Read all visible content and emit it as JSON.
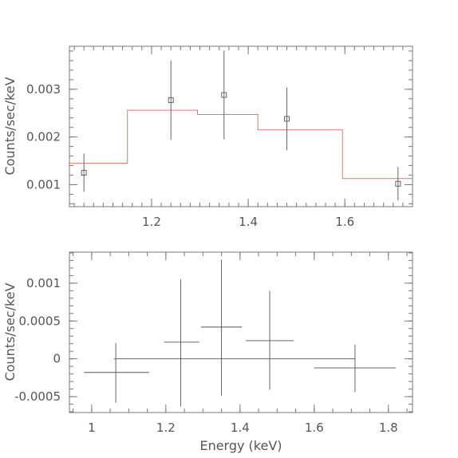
{
  "chart_data": [
    {
      "type": "scatter",
      "panel": "top",
      "xlabel": "",
      "ylabel": "Counts/sec/keV",
      "xlim": [
        1.03,
        1.74
      ],
      "ylim": [
        0.00054,
        0.0039
      ],
      "xticks": [
        1.2,
        1.4,
        1.6
      ],
      "xtick_labels": [
        "1.2",
        "1.4",
        "1.6"
      ],
      "yticks": [
        0.001,
        0.002,
        0.003
      ],
      "ytick_labels": [
        "0.001",
        "0.002",
        "0.003"
      ],
      "series": [
        {
          "kind": "data",
          "marker": "square",
          "color": "#555555",
          "points": [
            {
              "x": 1.06,
              "y": 0.00125,
              "yerr": 0.0004
            },
            {
              "x": 1.24,
              "y": 0.00277,
              "yerr": 0.00083
            },
            {
              "x": 1.35,
              "y": 0.00288,
              "yerr": 0.00093
            },
            {
              "x": 1.48,
              "y": 0.00238,
              "yerr": 0.00066
            },
            {
              "x": 1.71,
              "y": 0.00102,
              "yerr": 0.00035
            }
          ]
        },
        {
          "kind": "model",
          "style": "step",
          "color": "#e57373",
          "steps": [
            {
              "x0": 1.03,
              "x1": 1.15,
              "y": 0.00145
            },
            {
              "x0": 1.15,
              "x1": 1.295,
              "y": 0.00256
            },
            {
              "x0": 1.295,
              "x1": 1.42,
              "y": 0.00247
            },
            {
              "x0": 1.42,
              "x1": 1.595,
              "y": 0.00215
            },
            {
              "x0": 1.595,
              "x1": 1.74,
              "y": 0.00113
            }
          ]
        }
      ]
    },
    {
      "type": "scatter",
      "panel": "bottom",
      "xlabel": "Energy (keV)",
      "ylabel": "Counts/sec/keV",
      "xlim": [
        0.94,
        1.865
      ],
      "ylim": [
        -0.00071,
        0.00141
      ],
      "xticks": [
        1,
        1.2,
        1.4,
        1.6,
        1.8
      ],
      "xtick_labels": [
        "1",
        "1.2",
        "1.4",
        "1.6",
        "1.8"
      ],
      "yticks": [
        -0.0005,
        0,
        0.0005,
        0.001
      ],
      "ytick_labels": [
        "-0.0005",
        "0",
        "0.0005",
        "0.001"
      ],
      "zero_line": {
        "x0": 1.06,
        "x1": 1.71,
        "y": 0
      },
      "series": [
        {
          "kind": "residuals",
          "color": "#555555",
          "points": [
            {
              "x0": 0.98,
              "x1": 1.155,
              "y": -0.00018,
              "ylo": -0.00058,
              "yhi": 0.00021,
              "xc": 1.065
            },
            {
              "x0": 1.195,
              "x1": 1.29,
              "y": 0.00022,
              "ylo": -0.00063,
              "yhi": 0.00105,
              "xc": 1.24
            },
            {
              "x0": 1.295,
              "x1": 1.405,
              "y": 0.00042,
              "ylo": -0.00049,
              "yhi": 0.00131,
              "xc": 1.35
            },
            {
              "x0": 1.415,
              "x1": 1.545,
              "y": 0.00024,
              "ylo": -0.00041,
              "yhi": 0.0009,
              "xc": 1.48
            },
            {
              "x0": 1.6,
              "x1": 1.82,
              "y": -0.00012,
              "ylo": -0.00044,
              "yhi": 0.00019,
              "xc": 1.71
            }
          ]
        }
      ]
    }
  ]
}
